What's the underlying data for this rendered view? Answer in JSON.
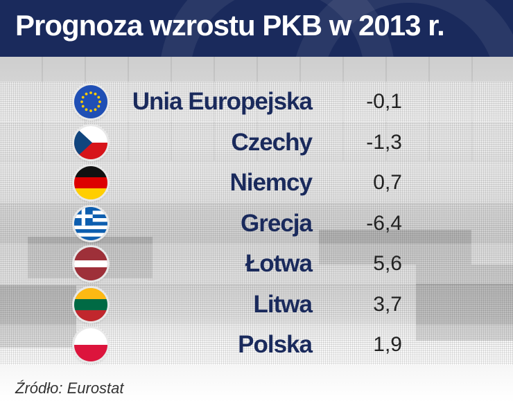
{
  "header": {
    "title": "Prognoza wzrostu PKB w 2013 r."
  },
  "chart_data": {
    "type": "table",
    "title": "Prognoza wzrostu PKB w 2013 r.",
    "rows": [
      {
        "country": "Unia Europejska",
        "value": -0.1,
        "label": "-0,1",
        "flag": "eu-flag-icon"
      },
      {
        "country": "Czechy",
        "value": -1.3,
        "label": "-1,3",
        "flag": "czech-flag-icon"
      },
      {
        "country": "Niemcy",
        "value": 0.7,
        "label": "0,7",
        "flag": "germany-flag-icon"
      },
      {
        "country": "Grecja",
        "value": -6.4,
        "label": "-6,4",
        "flag": "greece-flag-icon"
      },
      {
        "country": "Łotwa",
        "value": 5.6,
        "label": "5,6",
        "flag": "latvia-flag-icon"
      },
      {
        "country": "Litwa",
        "value": 3.7,
        "label": "3,7",
        "flag": "lithuania-flag-icon"
      },
      {
        "country": "Polska",
        "value": 1.9,
        "label": "1,9",
        "flag": "poland-flag-icon"
      }
    ],
    "source": "Źródło: Eurostat"
  },
  "colors": {
    "header_bg": "#1a2a5c",
    "country_text": "#1a2a5c",
    "value_text": "#222222"
  }
}
